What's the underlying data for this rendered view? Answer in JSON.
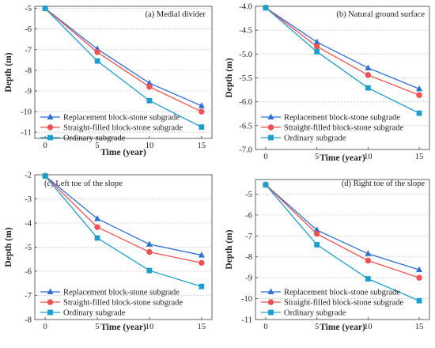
{
  "colors": {
    "replacement": "#2f6fd4",
    "straight": "#f05252",
    "ordinary": "#1c9fcc",
    "grid": "#c8c8c8",
    "axis": "#555555"
  },
  "chart_data": [
    {
      "type": "line",
      "title": "(a) Medial divider",
      "xlabel": "Time (year)",
      "ylabel": "Depth (m)",
      "x": [
        0,
        5,
        10,
        15
      ],
      "xticks": [
        0,
        5,
        10,
        15
      ],
      "ylim": [
        -11.3,
        -4.9
      ],
      "yticks": [
        -5,
        -6,
        -7,
        -8,
        -9,
        -10,
        -11
      ],
      "grid": "horizontal dotted",
      "legend": "bottom-left",
      "series": [
        {
          "name": "Replacement block-stone subgrade",
          "marker": "triangle",
          "values": [
            -5.0,
            -6.97,
            -8.62,
            -9.72
          ]
        },
        {
          "name": "Straight-filled block-stone subgrade",
          "marker": "circle",
          "values": [
            -5.0,
            -7.12,
            -8.8,
            -10.0
          ]
        },
        {
          "name": "Ordinary subgrade",
          "marker": "square",
          "values": [
            -5.0,
            -7.55,
            -9.47,
            -10.75
          ]
        }
      ]
    },
    {
      "type": "line",
      "title": "(b) Natural ground surface",
      "xlabel": "Time (year)",
      "ylabel": "Depth (m)",
      "x": [
        0,
        5,
        10,
        15
      ],
      "xticks": [
        0,
        5,
        10,
        15
      ],
      "ylim": [
        -7.0,
        -4.0
      ],
      "yticks": [
        -4.0,
        -4.5,
        -5.0,
        -5.5,
        -6.0,
        -6.5,
        -7.0
      ],
      "grid": "horizontal dotted",
      "legend": "bottom-left",
      "series": [
        {
          "name": "Replacement block-stone subgrade",
          "marker": "triangle",
          "values": [
            -4.03,
            -4.75,
            -5.29,
            -5.73
          ]
        },
        {
          "name": "Straight-filled block-stone subgrade",
          "marker": "circle",
          "values": [
            -4.03,
            -4.84,
            -5.44,
            -5.86
          ]
        },
        {
          "name": "Ordinary subgrade",
          "marker": "square",
          "values": [
            -4.03,
            -4.95,
            -5.71,
            -6.24
          ]
        }
      ]
    },
    {
      "type": "line",
      "title": "(c) Left toe of the slope",
      "xlabel": "Time (year)",
      "ylabel": "Depth (m)",
      "x": [
        0,
        5,
        10,
        15
      ],
      "xticks": [
        0,
        5,
        10,
        15
      ],
      "ylim": [
        -8.0,
        -2.0
      ],
      "yticks": [
        -2,
        -3,
        -4,
        -5,
        -6,
        -7,
        -8
      ],
      "grid": "horizontal dotted",
      "legend": "bottom-left",
      "series": [
        {
          "name": "Replacement block-stone subgrade",
          "marker": "triangle",
          "values": [
            -2.05,
            -3.82,
            -4.88,
            -5.33
          ]
        },
        {
          "name": "Straight-filled block-stone subgrade",
          "marker": "circle",
          "values": [
            -2.05,
            -4.17,
            -5.2,
            -5.65
          ]
        },
        {
          "name": "Ordinary subgrade",
          "marker": "square",
          "values": [
            -2.05,
            -4.62,
            -5.97,
            -6.63
          ]
        }
      ]
    },
    {
      "type": "line",
      "title": "(d) Right toe of the slope",
      "xlabel": "Time (year)",
      "ylabel": "Depth (m)",
      "x": [
        0,
        5,
        10,
        15
      ],
      "xticks": [
        0,
        5,
        10,
        15
      ],
      "ylim": [
        -11.0,
        -4.3
      ],
      "yticks": [
        -5,
        -6,
        -7,
        -8,
        -9,
        -10,
        -11
      ],
      "grid": "horizontal dotted",
      "legend": "bottom-left",
      "series": [
        {
          "name": "Replacement block-stone subgrade",
          "marker": "triangle",
          "values": [
            -4.55,
            -6.72,
            -7.85,
            -8.62
          ]
        },
        {
          "name": "Straight-filled block-stone subgrade",
          "marker": "circle",
          "values": [
            -4.55,
            -6.9,
            -8.18,
            -9.0
          ]
        },
        {
          "name": "Ordinary subgrade",
          "marker": "square",
          "values": [
            -4.55,
            -7.42,
            -9.05,
            -10.1
          ]
        }
      ]
    }
  ]
}
